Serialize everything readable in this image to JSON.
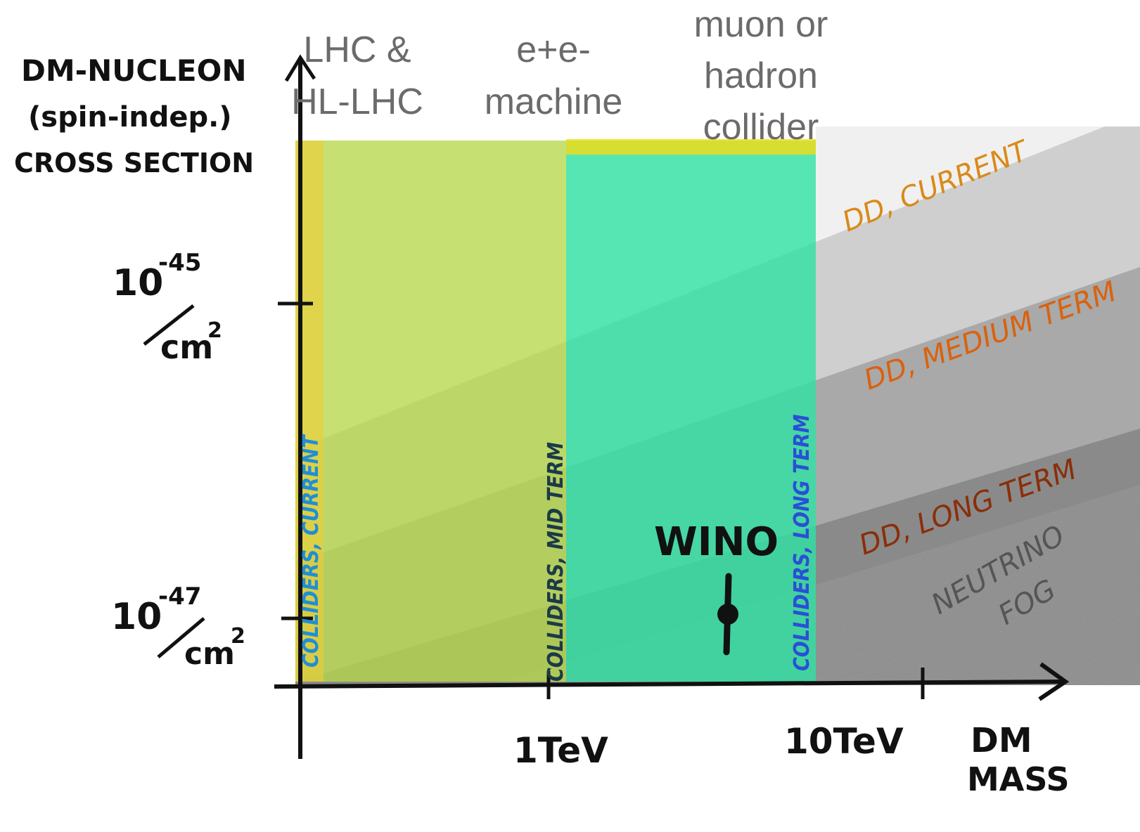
{
  "y_axis": {
    "label": [
      "DM-NUCLEON",
      "(spin-indep.)",
      "CROSS SECTION"
    ],
    "ticks": [
      {
        "base": "10",
        "exponent": "-45",
        "unit": "cm",
        "unit_exponent": "2"
      },
      {
        "base": "10",
        "exponent": "-47",
        "unit": "cm",
        "unit_exponent": "2"
      }
    ]
  },
  "x_axis": {
    "label": [
      "DM",
      "MASS"
    ],
    "ticks": [
      "1TeV",
      "10TeV"
    ]
  },
  "colliders": [
    {
      "label": [
        "LHC &",
        "HL-LHC"
      ],
      "reach": "COLLIDERS, CURRENT"
    },
    {
      "label": [
        "e+e-",
        "machine"
      ],
      "reach": "COLLIDERS, MID TERM"
    },
    {
      "label": [
        "muon or",
        "hadron",
        "collider"
      ],
      "reach": "COLLIDERS, LONG TERM"
    }
  ],
  "direct_detection": [
    "DD, CURRENT",
    "DD, MEDIUM TERM",
    "DD, LONG TERM"
  ],
  "neutrino_fog": [
    "NEUTRINO",
    "FOG"
  ],
  "candidate": "WINO"
}
